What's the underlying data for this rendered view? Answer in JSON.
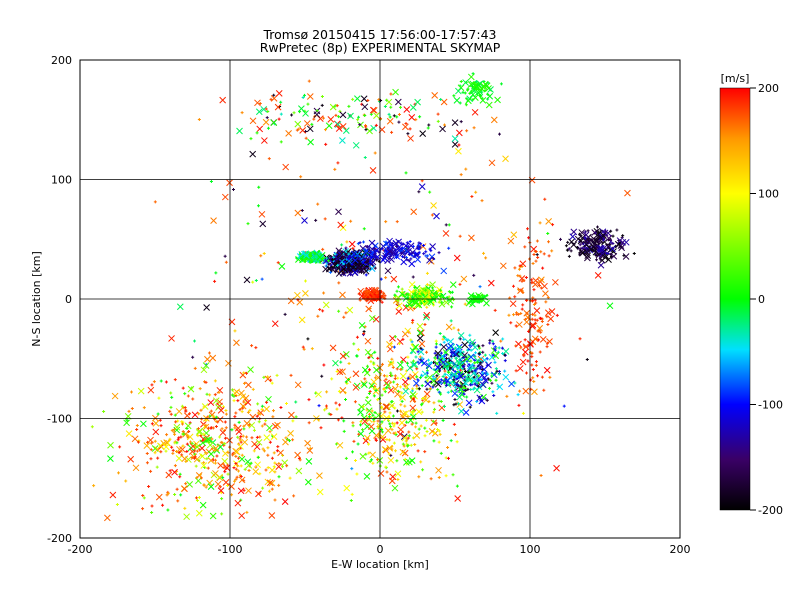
{
  "chart_data": {
    "type": "scatter",
    "title": "Tromsø 20150415 17:56:00-17:57:43",
    "subtitle": "RwPretec (8p) EXPERIMENTAL SKYMAP",
    "xlabel": "E-W location [km]",
    "ylabel": "N-S location [km]",
    "xlim": [
      -200,
      200
    ],
    "ylim": [
      -200,
      200
    ],
    "xticks": [
      "-200",
      "-100",
      "0",
      "100",
      "200"
    ],
    "yticks": [
      "-200",
      "-100",
      "0",
      "100",
      "200"
    ],
    "grid": true,
    "colorbar": {
      "label": "[m/s]",
      "range": [
        -200,
        200
      ],
      "ticks": [
        "200",
        "100",
        "0",
        "-100",
        "-200"
      ],
      "colormap": "black-purple-blue-cyan-green-yellow-red"
    },
    "markers": [
      "x",
      "+"
    ],
    "clusters": [
      {
        "region": "north-west core",
        "x": [
          -45,
          0
        ],
        "y": [
          20,
          45
        ],
        "velocity": [
          -200,
          -100
        ]
      },
      {
        "region": "green band west",
        "x": [
          -55,
          -25
        ],
        "y": [
          28,
          42
        ],
        "velocity": [
          0,
          20
        ]
      },
      {
        "region": "red patch center",
        "x": [
          -10,
          10
        ],
        "y": [
          -5,
          5
        ],
        "velocity": [
          170,
          200
        ]
      },
      {
        "region": "south-east spread",
        "x": [
          0,
          100
        ],
        "y": [
          -100,
          -20
        ],
        "velocity": [
          -80,
          40
        ]
      },
      {
        "region": "north-east dark",
        "x": [
          110,
          180
        ],
        "y": [
          20,
          70
        ],
        "velocity": [
          -200,
          -150
        ]
      },
      {
        "region": "south-west red",
        "x": [
          -200,
          -20
        ],
        "y": [
          -200,
          -40
        ],
        "velocity": [
          120,
          200
        ]
      },
      {
        "region": "north cyan-green",
        "x": [
          40,
          90
        ],
        "y": [
          150,
          200
        ],
        "velocity": [
          -20,
          20
        ]
      }
    ]
  }
}
